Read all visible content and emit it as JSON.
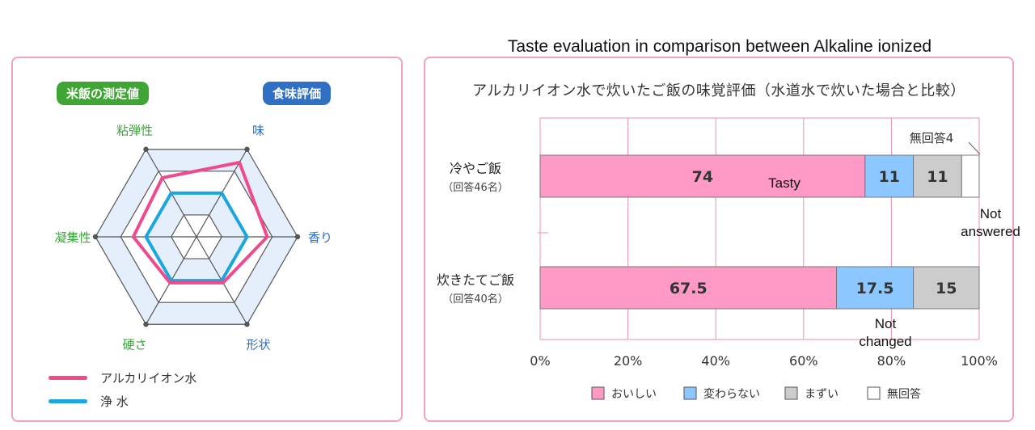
{
  "english_title": "Taste evaluation in comparison between Alkaline ionized water and tap water",
  "radar": {
    "badge_left": "米飯の測定値",
    "badge_right": "食味評価",
    "legend": [
      {
        "label": "アルカリイオン水",
        "color": "#ef4a8b"
      },
      {
        "label": "浄 水",
        "color": "#1aa6df"
      }
    ]
  },
  "bar": {
    "title": "アルカリイオン水で炊いたご飯の味覚評価（水道水で炊いた場合と比較）",
    "annotations": {
      "tasty": "Tasty",
      "not_answered": "Not\nanswered",
      "not_changed": "Not\nchanged"
    }
  },
  "chart_data": [
    {
      "type": "radar",
      "axes": [
        {
          "label": "味",
          "color": "#2f6fc4"
        },
        {
          "label": "香り",
          "color": "#2f6fc4"
        },
        {
          "label": "形状",
          "color": "#2f6fc4"
        },
        {
          "label": "硬さ",
          "color": "#3aa33a"
        },
        {
          "label": "凝集性",
          "color": "#3aa33a"
        },
        {
          "label": "粘弾性",
          "color": "#3aa33a"
        }
      ],
      "levels": 4,
      "range": [
        0,
        4
      ],
      "series": [
        {
          "name": "アルカリイオン水",
          "color": "#ef4a8b",
          "values": [
            3.4,
            2.8,
            2.1,
            2.1,
            2.5,
            2.7
          ]
        },
        {
          "name": "浄 水",
          "color": "#1aa6df",
          "values": [
            2.0,
            2.0,
            2.0,
            2.0,
            2.0,
            2.0
          ]
        }
      ]
    },
    {
      "type": "bar",
      "stacked": true,
      "orientation": "horizontal",
      "categories": [
        {
          "label": "冷やご飯",
          "sublabel": "（回答46名）"
        },
        {
          "label": "炊きたてご飯",
          "sublabel": "（回答40名）"
        }
      ],
      "series": [
        {
          "name": "おいしい",
          "color": "#ff99c6",
          "values": [
            74,
            67.5
          ],
          "labels": [
            "74",
            "67.5"
          ]
        },
        {
          "name": "変わらない",
          "color": "#8cc8ff",
          "values": [
            11,
            17.5
          ],
          "labels": [
            "11",
            "17.5"
          ]
        },
        {
          "name": "まずい",
          "color": "#cccccc",
          "values": [
            11,
            15
          ],
          "labels": [
            "11",
            "15"
          ]
        },
        {
          "name": "無回答",
          "color": "#ffffff",
          "values": [
            4,
            0
          ],
          "labels": [
            "",
            ""
          ]
        }
      ],
      "callout": "無回答4",
      "xticks": [
        "0%",
        "20%",
        "40%",
        "60%",
        "80%",
        "100%"
      ],
      "xlim": [
        0,
        100
      ],
      "grid": true,
      "legend_position": "bottom"
    }
  ]
}
